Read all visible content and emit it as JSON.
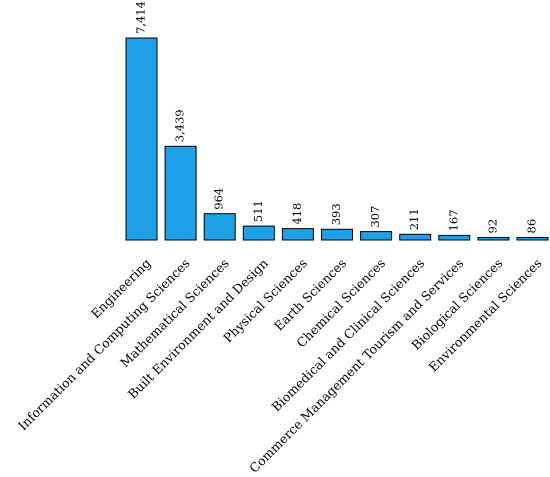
{
  "chart_data": {
    "type": "bar",
    "categories": [
      "Engineering",
      "Information and Computing Sciences",
      "Mathematical Sciences",
      "Built Environment and Design",
      "Physical Sciences",
      "Earth Sciences",
      "Chemical Sciences",
      "Biomedical and Clinical Sciences",
      "Commerce Management Tourism and Services",
      "Biological Sciences",
      "Environmental Sciences"
    ],
    "values": [
      7414,
      3439,
      964,
      511,
      418,
      393,
      307,
      211,
      167,
      92,
      86
    ],
    "value_labels": [
      "7,414",
      "3,439",
      "964",
      "511",
      "418",
      "393",
      "307",
      "211",
      "167",
      "92",
      "86"
    ],
    "ylim": [
      0,
      7414
    ],
    "grid": false,
    "legend": "none",
    "bar_color": "#1da1e8",
    "bar_edge_color": "#000000"
  }
}
